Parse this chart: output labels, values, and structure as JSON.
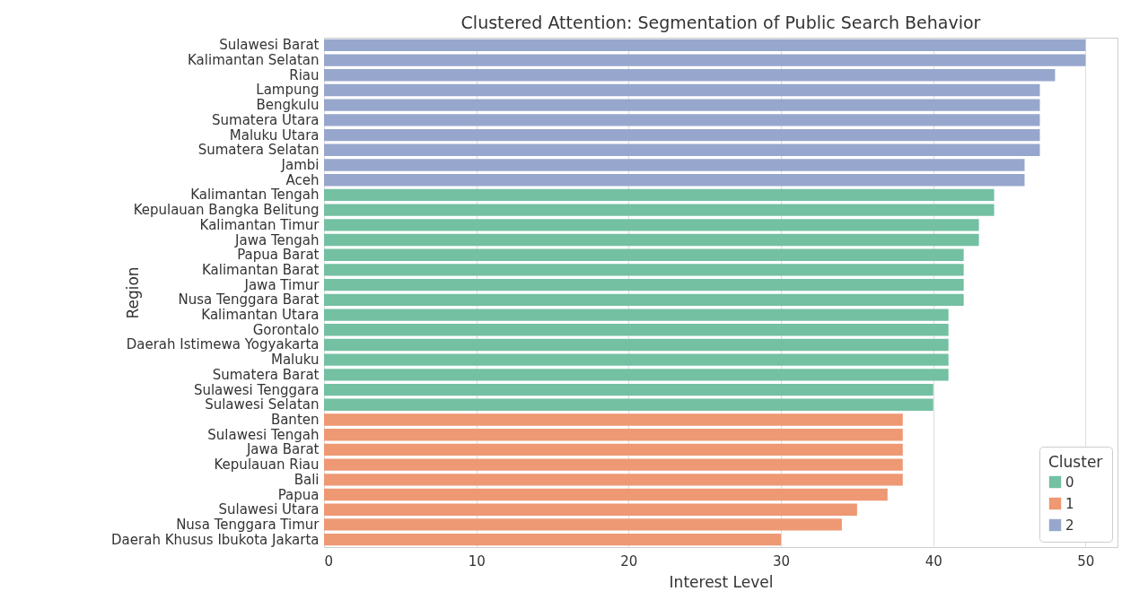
{
  "chart_data": {
    "type": "bar",
    "orientation": "horizontal",
    "title": "Clustered Attention: Segmentation of Public Search Behavior",
    "xlabel": "Interest Level",
    "ylabel": "Region",
    "legend_title": "Cluster",
    "legend": "bottom right",
    "grid": "x",
    "categories": [
      "Sulawesi Barat",
      "Kalimantan Selatan",
      "Riau",
      "Lampung",
      "Bengkulu",
      "Sumatera Utara",
      "Maluku Utara",
      "Sumatera Selatan",
      "Jambi",
      "Aceh",
      "Kalimantan Tengah",
      "Kepulauan Bangka Belitung",
      "Kalimantan Timur",
      "Jawa Tengah",
      "Papua Barat",
      "Kalimantan Barat",
      "Jawa Timur",
      "Nusa Tenggara Barat",
      "Kalimantan Utara",
      "Gorontalo",
      "Daerah Istimewa Yogyakarta",
      "Maluku",
      "Sumatera Barat",
      "Sulawesi Tenggara",
      "Sulawesi Selatan",
      "Banten",
      "Sulawesi Tengah",
      "Jawa Barat",
      "Kepulauan Riau",
      "Bali",
      "Papua",
      "Sulawesi Utara",
      "Nusa Tenggara Timur",
      "Daerah Khusus Ibukota Jakarta"
    ],
    "xlim": [
      0,
      52.1
    ],
    "xticks": [
      0,
      10,
      20,
      30,
      40,
      50
    ],
    "series": [
      {
        "name": "0",
        "color": "#73c0a2",
        "values": [
          null,
          null,
          null,
          null,
          null,
          null,
          null,
          null,
          null,
          null,
          44,
          44,
          43,
          43,
          42,
          42,
          42,
          42,
          41,
          41,
          41,
          41,
          41,
          40,
          40,
          null,
          null,
          null,
          null,
          null,
          null,
          null,
          null,
          null
        ]
      },
      {
        "name": "1",
        "color": "#ee9874",
        "values": [
          null,
          null,
          null,
          null,
          null,
          null,
          null,
          null,
          null,
          null,
          null,
          null,
          null,
          null,
          null,
          null,
          null,
          null,
          null,
          null,
          null,
          null,
          null,
          null,
          null,
          38,
          38,
          38,
          38,
          38,
          37,
          35,
          34,
          30
        ]
      },
      {
        "name": "2",
        "color": "#97a6cc",
        "values": [
          50,
          50,
          48,
          47,
          47,
          47,
          47,
          47,
          46,
          46,
          null,
          null,
          null,
          null,
          null,
          null,
          null,
          null,
          null,
          null,
          null,
          null,
          null,
          null,
          null,
          null,
          null,
          null,
          null,
          null,
          null,
          null,
          null,
          null
        ]
      }
    ]
  }
}
